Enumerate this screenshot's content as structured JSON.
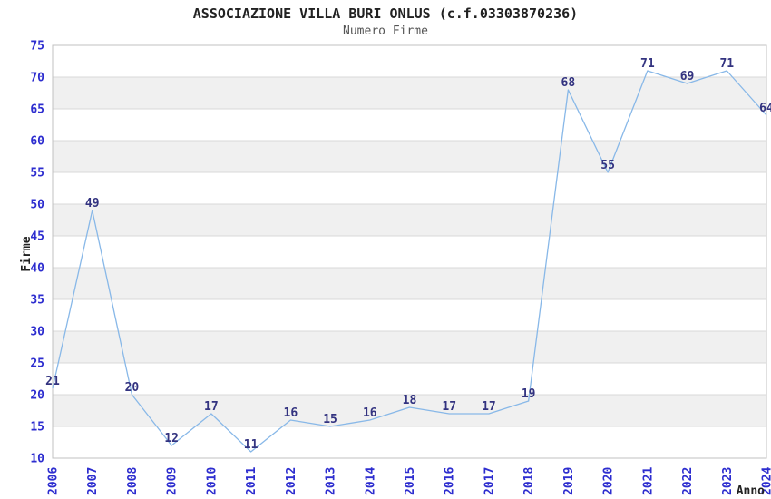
{
  "chart_data": {
    "type": "line",
    "title": "ASSOCIAZIONE VILLA BURI ONLUS (c.f.03303870236)",
    "subtitle": "Numero Firme",
    "xlabel": "Anno",
    "ylabel": "Firme",
    "categories": [
      "2006",
      "2007",
      "2008",
      "2009",
      "2010",
      "2011",
      "2012",
      "2013",
      "2014",
      "2015",
      "2016",
      "2017",
      "2018",
      "2019",
      "2020",
      "2021",
      "2022",
      "2023",
      "2024"
    ],
    "series": [
      {
        "name": "Numero Firme",
        "values": [
          21,
          49,
          20,
          12,
          17,
          11,
          16,
          15,
          16,
          18,
          17,
          17,
          19,
          68,
          55,
          71,
          69,
          71,
          64
        ]
      }
    ],
    "ylim": [
      10,
      75
    ],
    "ytick_step": 5,
    "grid": "horizontal",
    "band_fill": "alternating",
    "legend_position": "none",
    "data_labels_visible": true,
    "colors": {
      "line": "#88b8e8",
      "data_label": "#333380",
      "tick_label": "#2d2dcf",
      "title": "#222222",
      "subtitle": "#555555",
      "axis_label": "#222222",
      "band": "#f0f0f0",
      "gridline": "#d9d9d9",
      "border": "#c0c0c0",
      "background": "#ffffff"
    }
  }
}
